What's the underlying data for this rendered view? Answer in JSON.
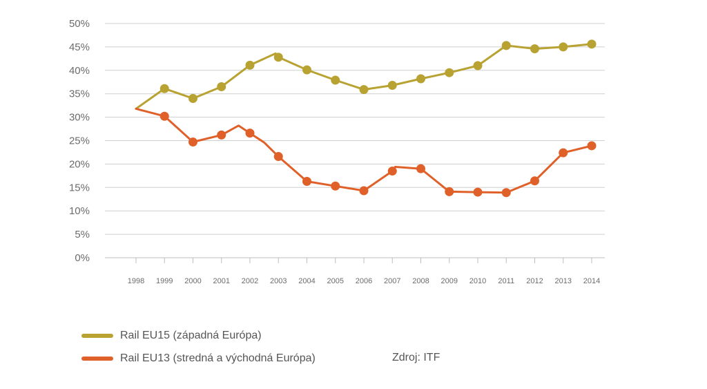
{
  "chart_data": {
    "type": "line",
    "x": [
      "1998",
      "1999",
      "2000",
      "2001",
      "2002",
      "2003",
      "2004",
      "2005",
      "2006",
      "2007",
      "2008",
      "2009",
      "2010",
      "2011",
      "2012",
      "2013",
      "2014"
    ],
    "yticks": [
      "0%",
      "5%",
      "10%",
      "15%",
      "20%",
      "25%",
      "30%",
      "35%",
      "40%",
      "45%",
      "50%"
    ],
    "ylim": [
      0,
      50
    ],
    "grid": true,
    "series": [
      {
        "name": "Rail EU15 (západná Európa)",
        "color": "#b8a232",
        "values": [
          31.8,
          36.1,
          34.0,
          36.5,
          41.1,
          42.8,
          40.1,
          37.9,
          35.9,
          36.8,
          38.2,
          39.5,
          41.0,
          45.3,
          44.6,
          45.0,
          45.6
        ],
        "vertices": [
          {
            "x": 2002.9,
            "y": 43.6
          }
        ]
      },
      {
        "name": "Rail EU13 (stredná a východná Európa)",
        "color": "#e0602a",
        "values": [
          31.8,
          30.2,
          24.7,
          26.2,
          26.6,
          21.6,
          16.3,
          15.3,
          14.3,
          18.5,
          19.0,
          14.1,
          14.0,
          13.9,
          16.4,
          22.4,
          23.9
        ],
        "vertices": [
          {
            "x": 2001.6,
            "y": 28.2
          },
          {
            "x": 2002.5,
            "y": 24.6
          },
          {
            "x": 2007.1,
            "y": 19.4
          }
        ]
      }
    ],
    "legend_position": "bottom-left"
  },
  "source": "Zdroj: ITF"
}
